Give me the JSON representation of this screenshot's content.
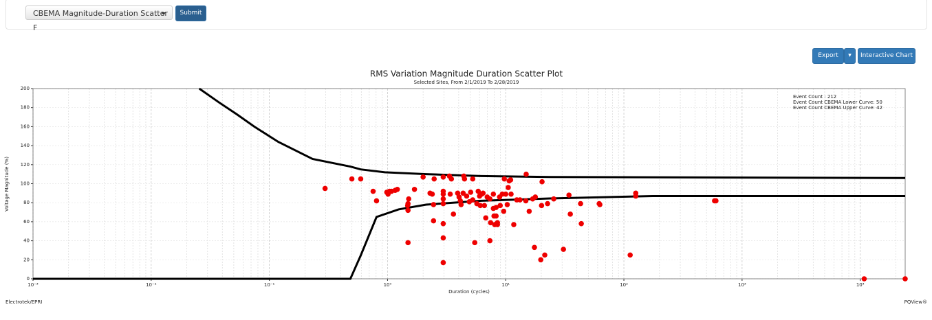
{
  "controls": {
    "dropdown": "CBEMA Magnitude-Duration Scatter F",
    "submit": "Submit",
    "export": "Export",
    "interactive": "Interactive Chart"
  },
  "chart_data": {
    "type": "scatter",
    "title": "RMS Variation Magnitude Duration Scatter Plot",
    "subtitle": "Selected Sites, From 2/1/2019 To 2/28/2019",
    "x_label": "Duration (cycles)",
    "y_label": "Voltage Magnitude (%)",
    "annotations": [
      "Event Count : 212",
      "Event Count CBEMA Lower Curve: 50",
      "Event Count CBEMA Upper Curve: 42"
    ],
    "x_log": true,
    "grid": true,
    "color": "#ee0000",
    "xlim": [
      0.001,
      24000
    ],
    "ylim": [
      0,
      200
    ],
    "xticks": [
      {
        "value": 0.001,
        "label": "10⁻³"
      },
      {
        "value": 0.01,
        "label": "10⁻²"
      },
      {
        "value": 0.1,
        "label": "10⁻¹"
      },
      {
        "value": 1,
        "label": "10⁰"
      },
      {
        "value": 10,
        "label": "10¹"
      },
      {
        "value": 100,
        "label": "10²"
      },
      {
        "value": 1000,
        "label": "10³"
      },
      {
        "value": 10000,
        "label": "10⁴"
      }
    ],
    "yticks": [
      0,
      20,
      40,
      60,
      80,
      100,
      120,
      140,
      160,
      180,
      200
    ],
    "x": [
      0.296,
      0.499,
      0.593,
      0.755,
      0.807,
      0.986,
      1.01,
      1.04,
      1.08,
      1.16,
      1.21,
      1.51,
      1.49,
      1.48,
      1.49,
      1.49,
      1.69,
      2.0,
      2.29,
      2.39,
      2.45,
      2.45,
      2.48,
      2.96,
      2.96,
      2.96,
      2.96,
      2.96,
      2.96,
      2.96,
      2.96,
      3.34,
      3.47,
      3.39,
      3.61,
      3.92,
      4.03,
      4.13,
      4.19,
      4.36,
      4.42,
      4.48,
      4.67,
      4.92,
      5.05,
      5.26,
      5.26,
      5.47,
      5.7,
      5.85,
      6.01,
      6.09,
      6.26,
      6.43,
      6.6,
      6.78,
      6.97,
      7.35,
      7.35,
      7.45,
      7.86,
      7.86,
      7.96,
      8.07,
      8.29,
      8.29,
      8.51,
      8.51,
      8.87,
      8.98,
      9.35,
      9.61,
      9.73,
      10.0,
      10.3,
      10.5,
      10.7,
      11.0,
      11.1,
      11.7,
      12.4,
      13.2,
      14.8,
      14.9,
      15.8,
      16.9,
      17.5,
      17.8,
      19.8,
      20.1,
      20.3,
      21.4,
      22.6,
      25.5,
      30.8,
      34.3,
      35.2,
      43.0,
      43.6,
      61.8,
      62.6,
      113,
      126,
      126,
      585,
      601,
      10800,
      24000
    ],
    "values": [
      95,
      105,
      105,
      92,
      82,
      91,
      89,
      92,
      92,
      93,
      94,
      84,
      79,
      77,
      72,
      38,
      94,
      107,
      90,
      89,
      78,
      61,
      105,
      107,
      92,
      89,
      84,
      79,
      58,
      43,
      17,
      108,
      105,
      89,
      68,
      90,
      86,
      82,
      78,
      90,
      108,
      105,
      87,
      81,
      91,
      83,
      105,
      38,
      79,
      92,
      87,
      77,
      89,
      90,
      77,
      64,
      86,
      84,
      40,
      59,
      89,
      74,
      66,
      57,
      66,
      75,
      57,
      59,
      86,
      77,
      89,
      71,
      105,
      89,
      78,
      96,
      103,
      104,
      89,
      57,
      83,
      83,
      82,
      110,
      71,
      84,
      33,
      86,
      20,
      77,
      102,
      25,
      79,
      84,
      31,
      88,
      68,
      79,
      58,
      79,
      78,
      25,
      90,
      87,
      82,
      82,
      0,
      0
    ],
    "curves": [
      {
        "color": "#000000",
        "x": [
          0.0255,
          0.038,
          0.053,
          0.0745,
          0.119,
          0.232,
          0.485,
          0.593,
          0.948,
          2.12,
          6.18,
          23.6,
          24000
        ],
        "values": [
          200,
          185,
          173,
          160,
          144,
          126,
          118,
          115,
          112,
          110,
          108,
          107,
          106
        ]
      },
      {
        "color": "#000000",
        "x": [
          0.001,
          0.485,
          0.593,
          0.807,
          1.24,
          2.12,
          6.18,
          23.6,
          175,
          24000
        ],
        "values": [
          0,
          0,
          24.5,
          65,
          73,
          78,
          82,
          84.5,
          87,
          87
        ]
      }
    ]
  },
  "footer": {
    "left": "Electrotek/EPRI",
    "right": "PQView®"
  }
}
